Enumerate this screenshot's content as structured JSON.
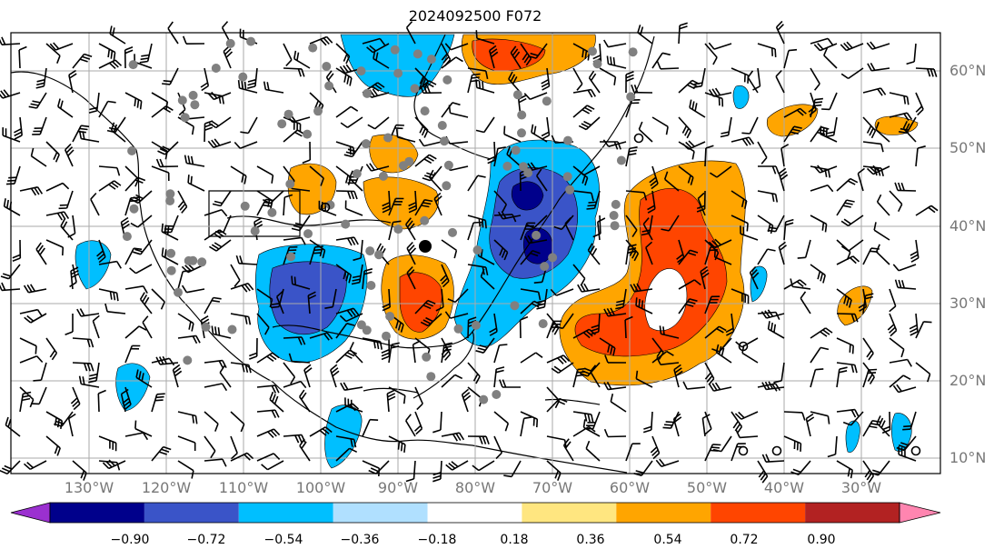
{
  "title": "2024092500 F072",
  "lat_labels": [
    "60°N",
    "50°N",
    "40°N",
    "30°N",
    "20°N",
    "10°N"
  ],
  "lon_labels": [
    "130°W",
    "120°W",
    "110°W",
    "100°W",
    "90°W",
    "80°W",
    "70°W",
    "60°W",
    "50°W",
    "40°W",
    "30°W"
  ],
  "colorbar": {
    "ticks": [
      "−0.90",
      "−0.72",
      "−0.54",
      "−0.36",
      "−0.18",
      "0.18",
      "0.36",
      "0.54",
      "0.72",
      "0.90"
    ],
    "colors": [
      "#9b30d0",
      "#00008b",
      "#3a54c8",
      "#00bfff",
      "#b0e0ff",
      "#ffffff",
      "#ffe680",
      "#ffa500",
      "#ff4500",
      "#b22222",
      "#ff85b0"
    ]
  },
  "colors": {
    "ocean": "#ffffff",
    "coast": "#000000",
    "grid": "#999999",
    "dot": "#808080"
  }
}
